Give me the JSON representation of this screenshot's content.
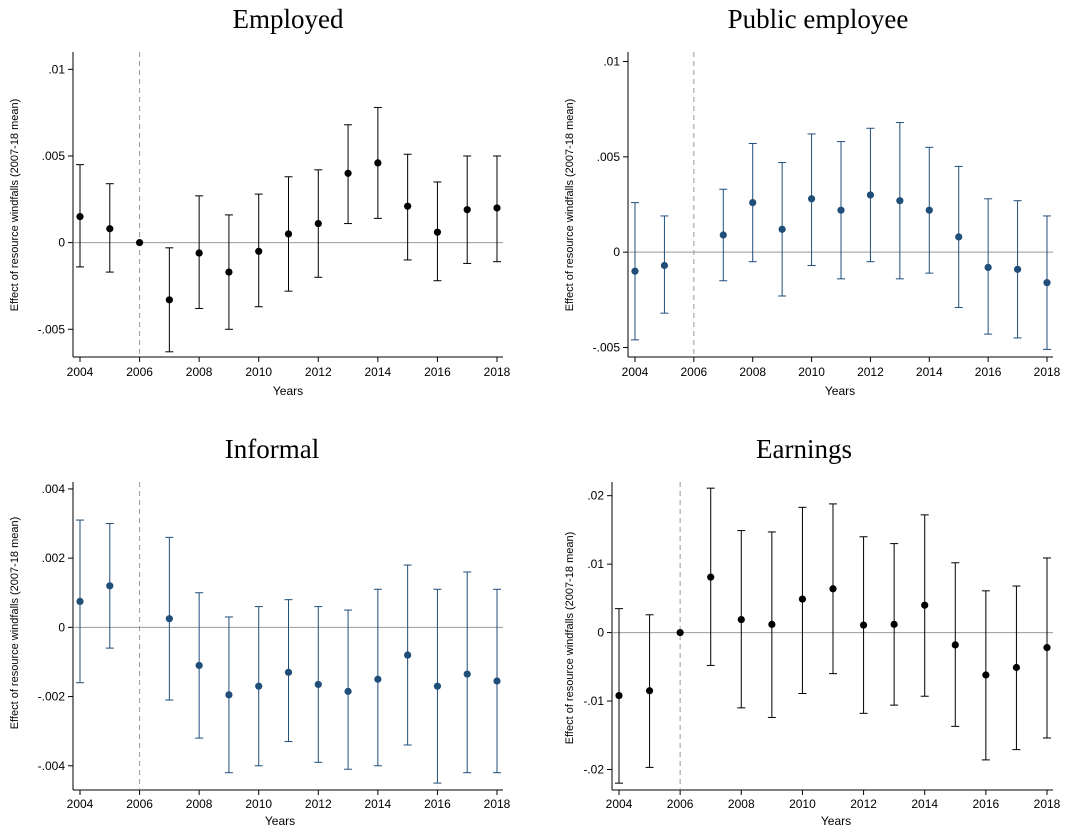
{
  "figure": {
    "y_axis_title": "Effect of resource windfalls (2007-18 mean)",
    "x_axis_title": "Years"
  },
  "chart_data": [
    {
      "type": "scatter",
      "title": "Employed",
      "xlabel": "Years",
      "ylabel": "Effect of resource windfalls (2007-18 mean)",
      "color": "#000000",
      "xlim": [
        2004,
        2018
      ],
      "ylim": [
        -0.0066,
        0.011
      ],
      "x_ticks": [
        2004,
        2006,
        2008,
        2010,
        2012,
        2014,
        2016,
        2018
      ],
      "y_ticks": [
        -0.005,
        0,
        0.005,
        0.01
      ],
      "y_tick_labels": [
        "-.005",
        "0",
        ".005",
        ".01"
      ],
      "reference_line_x": 2006,
      "zero_line": true,
      "series": [
        {
          "x": [
            2004,
            2005,
            2006,
            2007,
            2008,
            2009,
            2010,
            2011,
            2012,
            2013,
            2014,
            2015,
            2016,
            2017,
            2018
          ],
          "y": [
            0.0015,
            0.0008,
            0.0,
            -0.0033,
            -0.0006,
            -0.0017,
            -0.0005,
            0.0005,
            0.0011,
            0.004,
            0.0046,
            0.0021,
            0.0006,
            0.0019,
            0.002
          ],
          "ci_low": [
            -0.0014,
            -0.0017,
            null,
            -0.0063,
            -0.0038,
            -0.005,
            -0.0037,
            -0.0028,
            -0.002,
            0.0011,
            0.0014,
            -0.001,
            -0.0022,
            -0.0012,
            -0.0011
          ],
          "ci_high": [
            0.0045,
            0.0034,
            null,
            -0.0003,
            0.0027,
            0.0016,
            0.0028,
            0.0038,
            0.0042,
            0.0068,
            0.0078,
            0.0051,
            0.0035,
            0.005,
            0.005
          ]
        }
      ]
    },
    {
      "type": "scatter",
      "title": "Public employee",
      "xlabel": "Years",
      "ylabel": "Effect of resource windfalls (2007-18 mean)",
      "color": "#1f4e79",
      "xlim": [
        2004,
        2018
      ],
      "ylim": [
        -0.0055,
        0.0105
      ],
      "x_ticks": [
        2004,
        2006,
        2008,
        2010,
        2012,
        2014,
        2016,
        2018
      ],
      "y_ticks": [
        -0.005,
        0,
        0.005,
        0.01
      ],
      "y_tick_labels": [
        "-.005",
        "0",
        ".005",
        ".01"
      ],
      "reference_line_x": 2006,
      "zero_line": true,
      "series": [
        {
          "x": [
            2004,
            2005,
            2007,
            2008,
            2009,
            2010,
            2011,
            2012,
            2013,
            2014,
            2015,
            2016,
            2017,
            2018
          ],
          "y": [
            -0.001,
            -0.0007,
            0.0009,
            0.0026,
            0.0012,
            0.0028,
            0.0022,
            0.003,
            0.0027,
            0.0022,
            0.0008,
            -0.0008,
            -0.0009,
            -0.0016
          ],
          "ci_low": [
            -0.0046,
            -0.0032,
            -0.0015,
            -0.0005,
            -0.0023,
            -0.0007,
            -0.0014,
            -0.0005,
            -0.0014,
            -0.0011,
            -0.0029,
            -0.0043,
            -0.0045,
            -0.0051
          ],
          "ci_high": [
            0.0026,
            0.0019,
            0.0033,
            0.0057,
            0.0047,
            0.0062,
            0.0058,
            0.0065,
            0.0068,
            0.0055,
            0.0045,
            0.0028,
            0.0027,
            0.0019
          ]
        }
      ]
    },
    {
      "type": "scatter",
      "title": "Informal",
      "xlabel": "Years",
      "ylabel": "Effect of resource windfalls (2007-18 mean)",
      "color": "#1f4e79",
      "xlim": [
        2004,
        2018
      ],
      "ylim": [
        -0.0047,
        0.0042
      ],
      "x_ticks": [
        2004,
        2006,
        2008,
        2010,
        2012,
        2014,
        2016,
        2018
      ],
      "y_ticks": [
        -0.004,
        -0.002,
        0,
        0.002,
        0.004
      ],
      "y_tick_labels": [
        "-.004",
        "-.002",
        "0",
        ".002",
        ".004"
      ],
      "reference_line_x": 2006,
      "zero_line": true,
      "series": [
        {
          "x": [
            2004,
            2005,
            2007,
            2008,
            2009,
            2010,
            2011,
            2012,
            2013,
            2014,
            2015,
            2016,
            2017,
            2018
          ],
          "y": [
            0.00075,
            0.0012,
            0.00025,
            -0.0011,
            -0.00195,
            -0.0017,
            -0.0013,
            -0.00165,
            -0.00185,
            -0.0015,
            -0.0008,
            -0.0017,
            -0.00135,
            -0.00155
          ],
          "ci_low": [
            -0.0016,
            -0.0006,
            -0.0021,
            -0.0032,
            -0.0042,
            -0.004,
            -0.0033,
            -0.0039,
            -0.0041,
            -0.004,
            -0.0034,
            -0.0045,
            -0.0042,
            -0.0042
          ],
          "ci_high": [
            0.0031,
            0.003,
            0.0026,
            0.001,
            0.0003,
            0.0006,
            0.0008,
            0.0006,
            0.0005,
            0.0011,
            0.0018,
            0.0011,
            0.0016,
            0.0011
          ]
        }
      ]
    },
    {
      "type": "scatter",
      "title": "Earnings",
      "xlabel": "Years",
      "ylabel": "Effect of resource windfalls (2007-18 mean)",
      "color": "#000000",
      "xlim": [
        2004,
        2018
      ],
      "ylim": [
        -0.023,
        0.022
      ],
      "x_ticks": [
        2004,
        2006,
        2008,
        2010,
        2012,
        2014,
        2016,
        2018
      ],
      "y_ticks": [
        -0.02,
        -0.01,
        0,
        0.01,
        0.02
      ],
      "y_tick_labels": [
        "-.02",
        "-.01",
        "0",
        ".01",
        ".02"
      ],
      "reference_line_x": 2006,
      "zero_line": true,
      "series": [
        {
          "x": [
            2004,
            2005,
            2006,
            2007,
            2008,
            2009,
            2010,
            2011,
            2012,
            2013,
            2014,
            2015,
            2016,
            2017,
            2018
          ],
          "y": [
            -0.0092,
            -0.0085,
            0.0,
            0.0081,
            0.0019,
            0.0012,
            0.0049,
            0.0064,
            0.0011,
            0.0012,
            0.004,
            -0.0018,
            -0.0062,
            -0.0051,
            -0.0022
          ],
          "ci_low": [
            -0.022,
            -0.0197,
            null,
            -0.0048,
            -0.011,
            -0.0124,
            -0.0089,
            -0.006,
            -0.0118,
            -0.0106,
            -0.0093,
            -0.0137,
            -0.0186,
            -0.0171,
            -0.0154
          ],
          "ci_high": [
            0.0035,
            0.0026,
            null,
            0.0211,
            0.0149,
            0.0147,
            0.0183,
            0.0188,
            0.014,
            0.013,
            0.0172,
            0.0102,
            0.0061,
            0.0068,
            0.0109
          ]
        }
      ]
    }
  ]
}
